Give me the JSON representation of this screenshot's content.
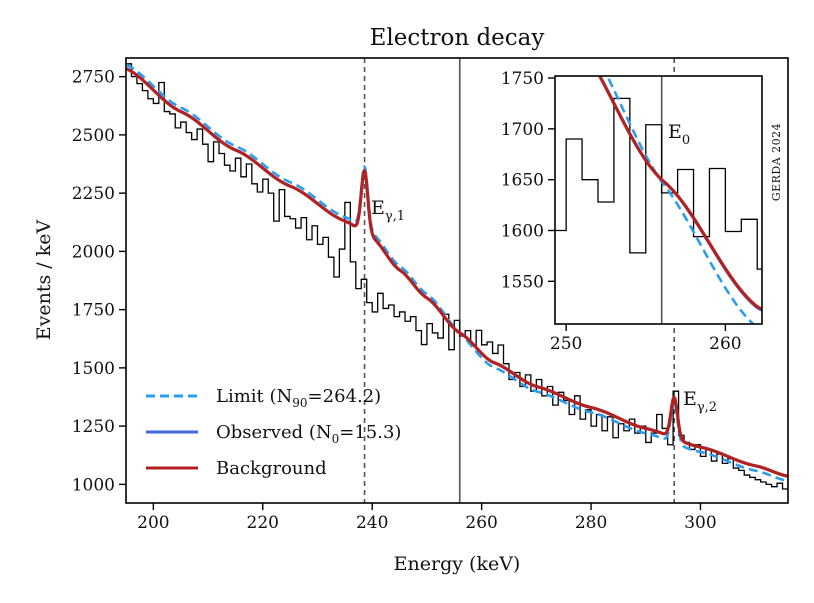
{
  "chart_data": {
    "type": "line",
    "title": "Electron decay",
    "xlabel": "Energy (keV)",
    "ylabel": "Events / keV",
    "xlim": [
      195,
      316
    ],
    "ylim": [
      920,
      2830
    ],
    "xticks": [
      200,
      220,
      240,
      260,
      280,
      300
    ],
    "yticks": [
      1000,
      1250,
      1500,
      1750,
      2000,
      2250,
      2500,
      2750
    ],
    "grid": false,
    "legend_position": "bottom-left",
    "legend": [
      {
        "name": "Limit",
        "label": "Limit (N",
        "sub": "90",
        "suffix": "=264.2)",
        "color": "#2b9df0",
        "style": "dashed"
      },
      {
        "name": "Observed",
        "label": "Observed (N",
        "sub": "0",
        "suffix": "=15.3)",
        "color": "#4169e1",
        "style": "solid"
      },
      {
        "name": "Background",
        "label": "Background",
        "sub": "",
        "suffix": "",
        "color": "#b22222",
        "style": "solid"
      }
    ],
    "annotations": {
      "gamma1": {
        "text": "E",
        "sub": "γ,1",
        "energy": 238.6
      },
      "gamma2": {
        "text": "E",
        "sub": "γ,2",
        "energy": 295.2
      },
      "e0": {
        "text": "E",
        "sub": "0",
        "energy": 256.0
      }
    },
    "vertical_lines": [
      {
        "name": "gamma1-line",
        "x": 238.6,
        "style": "dashed"
      },
      {
        "name": "e0-line",
        "x": 256.0,
        "style": "solid"
      },
      {
        "name": "gamma2-line",
        "x": 295.2,
        "style": "dashed"
      }
    ],
    "background_model": {
      "description": "smooth continuum plus two gaussian gamma lines",
      "continuum_points": [
        [
          195,
          2785
        ],
        [
          205,
          2600
        ],
        [
          215,
          2435
        ],
        [
          225,
          2280
        ],
        [
          235,
          2130
        ],
        [
          240,
          2060
        ],
        [
          245,
          1920
        ],
        [
          250,
          1800
        ],
        [
          256,
          1650
        ],
        [
          262,
          1525
        ],
        [
          270,
          1420
        ],
        [
          280,
          1330
        ],
        [
          290,
          1240
        ],
        [
          300,
          1160
        ],
        [
          310,
          1080
        ],
        [
          316,
          1035
        ]
      ],
      "peaks": [
        {
          "center": 238.6,
          "amplitude": 270,
          "sigma": 0.6
        },
        {
          "center": 295.2,
          "amplitude": 175,
          "sigma": 0.6
        }
      ]
    },
    "limit_signal": {
      "center": 256.0,
      "amplitude": 38,
      "width": 3.0
    },
    "observed_signal": {
      "center": 256.0,
      "amplitude": 2.2,
      "width": 3.0
    },
    "histogram": {
      "start": 195,
      "bin_width": 1,
      "counts": [
        2805,
        2750,
        2720,
        2690,
        2655,
        2635,
        2725,
        2600,
        2590,
        2530,
        2555,
        2510,
        2480,
        2525,
        2460,
        2385,
        2470,
        2420,
        2370,
        2345,
        2400,
        2320,
        2375,
        2290,
        2255,
        2310,
        2250,
        2130,
        2265,
        2150,
        2140,
        2100,
        2145,
        2050,
        2110,
        2030,
        2060,
        1975,
        1890,
        2010,
        2210,
        1955,
        1840,
        1880,
        1780,
        1740,
        1820,
        1755,
        1770,
        1720,
        1740,
        1700,
        1720,
        1660,
        1600,
        1690,
        1650,
        1628,
        1730,
        1578,
        1704,
        1637,
        1660,
        1594,
        1661,
        1599,
        1611,
        1562,
        1598,
        1518,
        1450,
        1480,
        1420,
        1470,
        1400,
        1450,
        1380,
        1420,
        1340,
        1395,
        1360,
        1300,
        1380,
        1280,
        1320,
        1250,
        1300,
        1230,
        1290,
        1200,
        1260,
        1230,
        1280,
        1220,
        1250,
        1180,
        1220,
        1300,
        1240,
        1170,
        1400,
        1210,
        1180,
        1150,
        1170,
        1120,
        1150,
        1100,
        1130,
        1090,
        1110,
        1070,
        1060,
        1040,
        1030,
        1020,
        1010,
        1000,
        990,
        1005,
        980,
        1010
      ]
    },
    "inset": {
      "xlim": [
        249.3,
        262.3
      ],
      "ylim": [
        1508,
        1752
      ],
      "xticks": [
        250,
        260
      ],
      "yticks": [
        1550,
        1600,
        1650,
        1700,
        1750
      ]
    },
    "watermark": "GERDA 2024"
  }
}
